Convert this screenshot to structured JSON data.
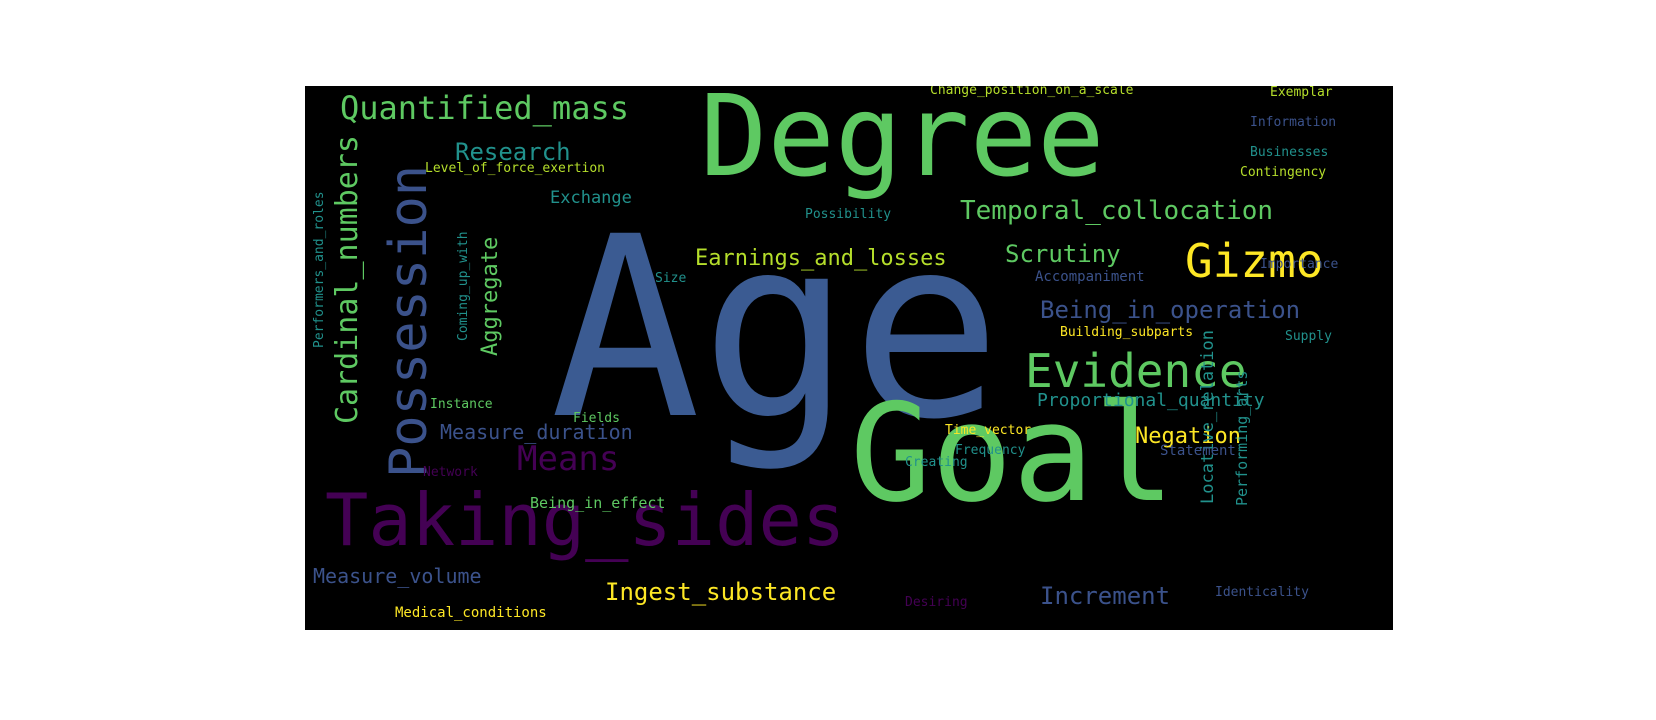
{
  "figure": {
    "type": "word-cloud",
    "background_color": "#000000",
    "page_color": "#ffffff",
    "palette": [
      "#440154",
      "#3b528b",
      "#21918c",
      "#5ec962",
      "#fde725"
    ]
  },
  "words": [
    {
      "text": "Age",
      "color": "#3b5b92"
    },
    {
      "text": "Goal",
      "color": "#5ec962"
    },
    {
      "text": "Degree",
      "color": "#5ec962"
    },
    {
      "text": "Taking_sides",
      "color": "#440154"
    },
    {
      "text": "Possession",
      "color": "#3b528b"
    },
    {
      "text": "Evidence",
      "color": "#5ec962"
    },
    {
      "text": "Gizmo",
      "color": "#fde725"
    },
    {
      "text": "Quantified_mass",
      "color": "#5ec962"
    },
    {
      "text": "Cardinal_numbers",
      "color": "#5ec962"
    },
    {
      "text": "Means",
      "color": "#440154"
    },
    {
      "text": "Temporal_collocation",
      "color": "#5ec962"
    },
    {
      "text": "Earnings_and_losses",
      "color": "#b5de2b"
    },
    {
      "text": "Being_in_operation",
      "color": "#3b528b"
    },
    {
      "text": "Scrutiny",
      "color": "#5ec962"
    },
    {
      "text": "Ingest_substance",
      "color": "#fde725"
    },
    {
      "text": "Increment",
      "color": "#3b528b"
    },
    {
      "text": "Measure_volume",
      "color": "#3b528b"
    },
    {
      "text": "Research",
      "color": "#21918c"
    },
    {
      "text": "Aggregate",
      "color": "#5ec962"
    },
    {
      "text": "Proportional_quantity",
      "color": "#21918c"
    },
    {
      "text": "Measure_duration",
      "color": "#3b528b"
    },
    {
      "text": "Negation",
      "color": "#fde725"
    },
    {
      "text": "Exchange",
      "color": "#21918c"
    },
    {
      "text": "Change_position_on_a_scale",
      "color": "#b5de2b"
    },
    {
      "text": "Level_of_force_exertion",
      "color": "#b5de2b"
    },
    {
      "text": "Medical_conditions",
      "color": "#fde725"
    },
    {
      "text": "Being_in_effect",
      "color": "#5ec962"
    },
    {
      "text": "Locative_relation",
      "color": "#21918c"
    },
    {
      "text": "Performing_arts",
      "color": "#21918c"
    },
    {
      "text": "Performers_and_roles",
      "color": "#21918c"
    },
    {
      "text": "Coming_up_with",
      "color": "#21918c"
    },
    {
      "text": "Accompaniment",
      "color": "#3b528b"
    },
    {
      "text": "Building_subparts",
      "color": "#fde725"
    },
    {
      "text": "Possibility",
      "color": "#21918c"
    },
    {
      "text": "Importance",
      "color": "#3b528b"
    },
    {
      "text": "Information",
      "color": "#3b528b"
    },
    {
      "text": "Businesses",
      "color": "#21918c"
    },
    {
      "text": "Contingency",
      "color": "#b5de2b"
    },
    {
      "text": "Exemplar",
      "color": "#b5de2b"
    },
    {
      "text": "Supply",
      "color": "#21918c"
    },
    {
      "text": "Instance",
      "color": "#5ec962"
    },
    {
      "text": "Fields",
      "color": "#5ec962"
    },
    {
      "text": "Size",
      "color": "#21918c"
    },
    {
      "text": "Time_vector",
      "color": "#fde725"
    },
    {
      "text": "Frequency",
      "color": "#21918c"
    },
    {
      "text": "Statement",
      "color": "#3b528b"
    },
    {
      "text": "Creating",
      "color": "#21918c"
    },
    {
      "text": "Network",
      "color": "#440154"
    },
    {
      "text": "Desiring",
      "color": "#440154"
    },
    {
      "text": "Identicality",
      "color": "#3b528b"
    }
  ]
}
